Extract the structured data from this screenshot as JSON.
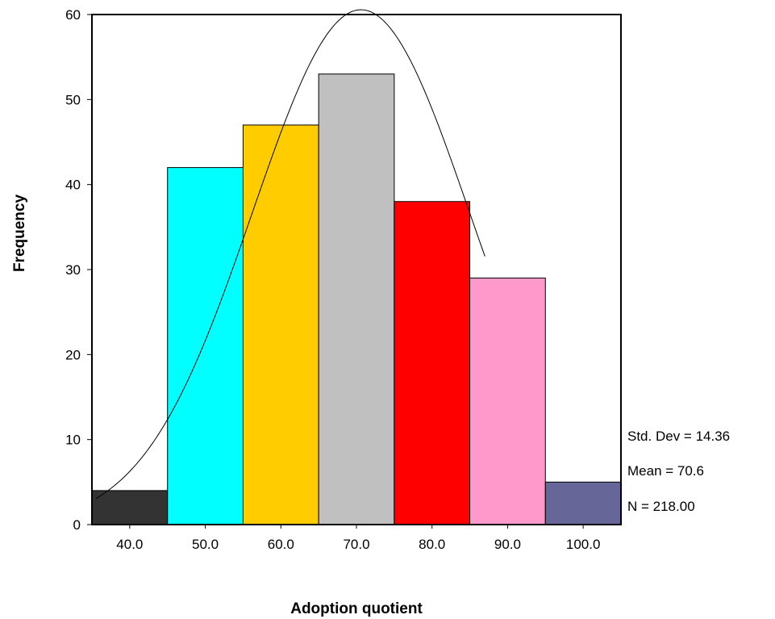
{
  "chart_data": {
    "type": "bar",
    "subtype": "histogram",
    "xlabel": "Adoption quotient",
    "ylabel": "Frequency",
    "categories": [
      "40.0",
      "50.0",
      "60.0",
      "70.0",
      "80.0",
      "90.0",
      "100.0"
    ],
    "bin_centers": [
      40,
      50,
      60,
      70,
      80,
      90,
      100
    ],
    "bin_width": 10,
    "values": [
      4,
      42,
      47,
      53,
      38,
      29,
      5
    ],
    "colors": [
      "#333333",
      "#00ffff",
      "#ffcc00",
      "#c0c0c0",
      "#ff0000",
      "#ff99cc",
      "#666699"
    ],
    "xlim": [
      35,
      105
    ],
    "ylim": [
      0,
      60
    ],
    "yticks": [
      0,
      10,
      20,
      30,
      40,
      50,
      60
    ],
    "grid": false,
    "normal_curve": {
      "mean": 70.6,
      "std": 14.36,
      "n": 218,
      "x_range": [
        35.5,
        87
      ]
    },
    "stats": {
      "std_dev": "Std. Dev = 14.36",
      "mean": "Mean = 70.6",
      "n": "N = 218.00"
    }
  }
}
